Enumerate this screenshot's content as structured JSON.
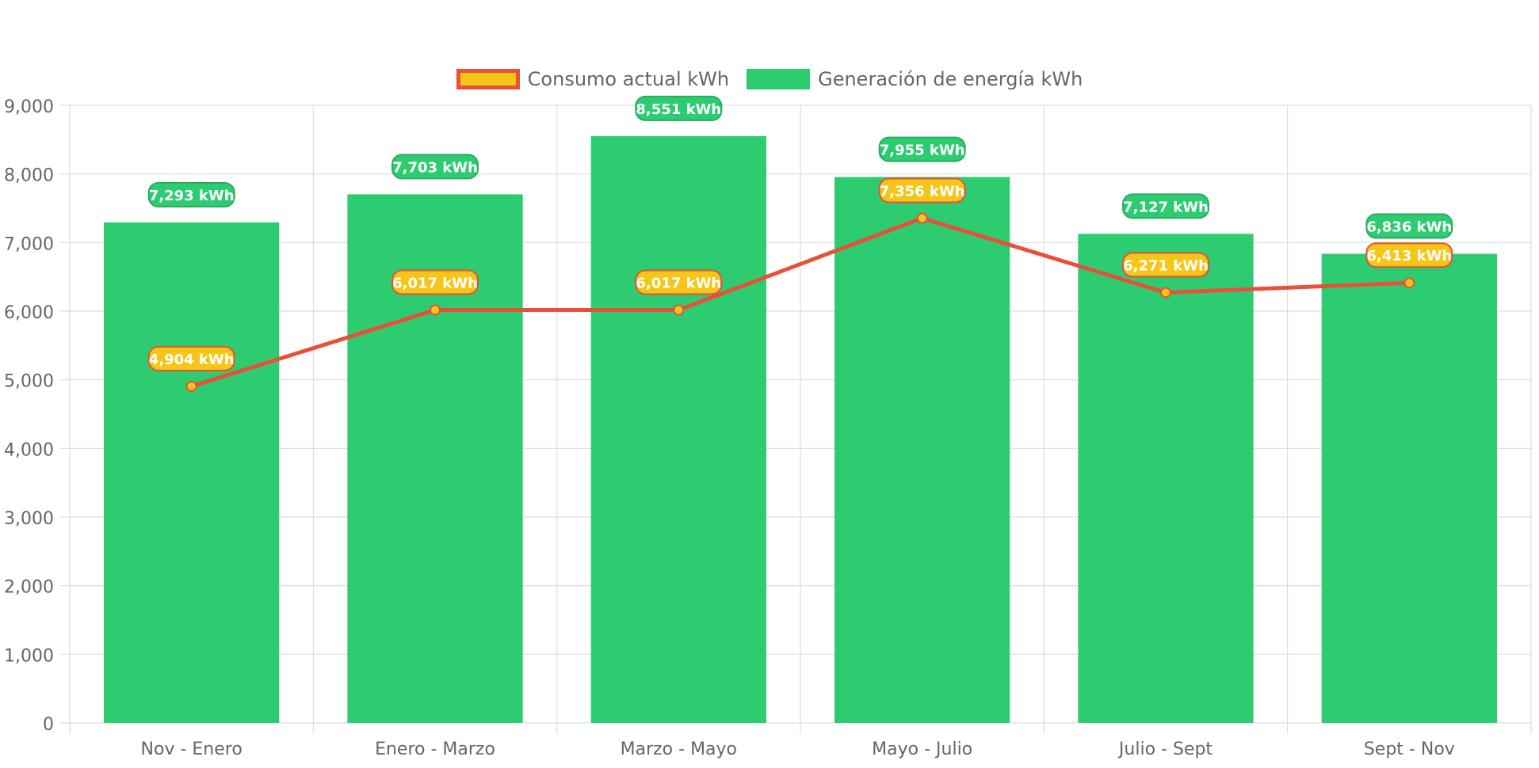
{
  "colors": {
    "bar": "#2ecc71",
    "bar_label_bg": "#2ecc71",
    "bar_label_border": "#27ae60",
    "line": "#e8503a",
    "point_fill": "#f5c518",
    "line_label_bg": "#f5c518",
    "line_label_border": "#e8503a",
    "grid": "#dddddd",
    "tick_text": "#666666"
  },
  "legend": {
    "position": "top-center",
    "items": [
      {
        "label": "Consumo actual kWh",
        "icon": "line-swatch"
      },
      {
        "label": "Generación de energía kWh",
        "icon": "bar-swatch"
      }
    ]
  },
  "chart_data": {
    "type": "bar",
    "title": "",
    "xlabel": "",
    "ylabel": "",
    "grid": true,
    "ylim": [
      0,
      9000
    ],
    "yticks": [
      0,
      1000,
      2000,
      3000,
      4000,
      5000,
      6000,
      7000,
      8000,
      9000
    ],
    "ytick_labels": [
      "0",
      "1,000",
      "2,000",
      "3,000",
      "4,000",
      "5,000",
      "6,000",
      "7,000",
      "8,000",
      "9,000"
    ],
    "categories": [
      "Nov - Enero",
      "Enero - Marzo",
      "Marzo - Mayo",
      "Mayo - Julio",
      "Julio - Sept",
      "Sept - Nov"
    ],
    "series": [
      {
        "name": "Consumo actual kWh",
        "type": "line",
        "values": [
          4904,
          6017,
          6017,
          7356,
          6271,
          6413
        ],
        "labels": [
          "4,904 kWh",
          "6,017 kWh",
          "6,017 kWh",
          "7,356 kWh",
          "6,271 kWh",
          "6,413 kWh"
        ]
      },
      {
        "name": "Generación de energía kWh",
        "type": "bar",
        "values": [
          7293,
          7703,
          8551,
          7955,
          7127,
          6836
        ],
        "labels": [
          "7,293 kWh",
          "7,703 kWh",
          "8,551 kWh",
          "7,955 kWh",
          "7,127 kWh",
          "6,836 kWh"
        ]
      }
    ]
  }
}
